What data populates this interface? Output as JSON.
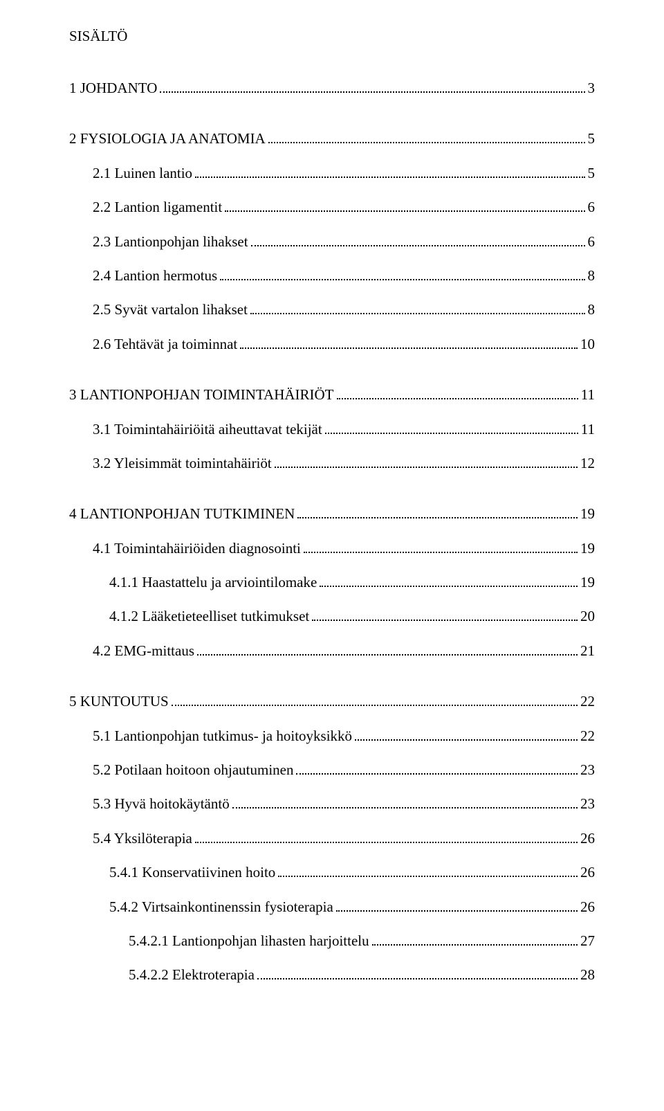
{
  "title": "SISÄLTÖ",
  "entries": [
    {
      "level": 0,
      "label": "1 JOHDANTO",
      "page": "3"
    },
    {
      "level": 0,
      "label": "2 FYSIOLOGIA JA ANATOMIA",
      "page": "5"
    },
    {
      "level": 1,
      "label": "2.1 Luinen lantio",
      "page": "5"
    },
    {
      "level": 1,
      "label": "2.2 Lantion ligamentit",
      "page": "6"
    },
    {
      "level": 1,
      "label": "2.3 Lantionpohjan lihakset",
      "page": "6"
    },
    {
      "level": 1,
      "label": "2.4 Lantion hermotus",
      "page": "8"
    },
    {
      "level": 1,
      "label": "2.5 Syvät vartalon lihakset",
      "page": "8"
    },
    {
      "level": 1,
      "label": "2.6 Tehtävät ja toiminnat",
      "page": "10"
    },
    {
      "level": 0,
      "label": "3 LANTIONPOHJAN TOIMINTAHÄIRIÖT",
      "page": "11"
    },
    {
      "level": 1,
      "label": "3.1 Toimintahäiriöitä aiheuttavat tekijät",
      "page": "11"
    },
    {
      "level": 1,
      "label": "3.2 Yleisimmät toimintahäiriöt",
      "page": "12"
    },
    {
      "level": 0,
      "label": "4 LANTIONPOHJAN TUTKIMINEN",
      "page": "19"
    },
    {
      "level": 1,
      "label": "4.1 Toimintahäiriöiden diagnosointi",
      "page": "19"
    },
    {
      "level": 2,
      "label": "4.1.1 Haastattelu ja arviointilomake",
      "page": "19"
    },
    {
      "level": 2,
      "label": "4.1.2 Lääketieteelliset tutkimukset",
      "page": "20"
    },
    {
      "level": 1,
      "label": "4.2 EMG-mittaus",
      "page": "21"
    },
    {
      "level": 0,
      "label": "5 KUNTOUTUS",
      "page": "22"
    },
    {
      "level": 1,
      "label": "5.1 Lantionpohjan tutkimus- ja hoitoyksikkö",
      "page": "22"
    },
    {
      "level": 1,
      "label": "5.2 Potilaan hoitoon ohjautuminen",
      "page": "23"
    },
    {
      "level": 1,
      "label": "5.3 Hyvä hoitokäytäntö",
      "page": "23"
    },
    {
      "level": 1,
      "label": "5.4 Yksilöterapia",
      "page": "26"
    },
    {
      "level": 2,
      "label": "5.4.1 Konservatiivinen hoito",
      "page": "26"
    },
    {
      "level": 2,
      "label": "5.4.2 Virtsainkontinenssin fysioterapia",
      "page": "26"
    },
    {
      "level": 3,
      "label": "5.4.2.1 Lantionpohjan lihasten harjoittelu",
      "page": "27"
    },
    {
      "level": 3,
      "label": "5.4.2.2 Elektroterapia",
      "page": "28"
    }
  ]
}
